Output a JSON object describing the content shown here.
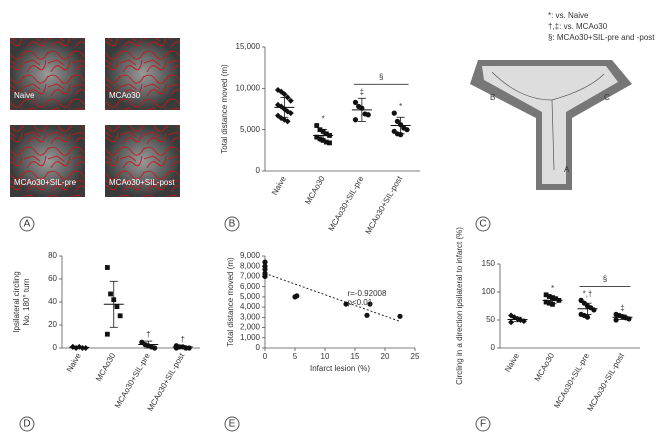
{
  "panel_a": {
    "labels": [
      "Naive",
      "MCAo30",
      "MCAo30+SIL-pre",
      "MCAo30+SIL-post"
    ]
  },
  "panel_c": {
    "legend": [
      "*: vs. Naive",
      "†,‡: vs. MCAo30",
      "§: MCAo30+SIL-pre and -post"
    ],
    "arms": [
      "B",
      "C",
      "A"
    ]
  },
  "panel_letters": [
    "A",
    "B",
    "C",
    "D",
    "E",
    "F"
  ],
  "chart_data": [
    {
      "type": "dot",
      "ylabel": [
        "Total distance moved (m)"
      ],
      "categories": [
        "Naive",
        "MCAo30",
        "MCAo30+SIL-pre",
        "MCAo30+SIL-post"
      ],
      "values": [
        [
          9800,
          9600,
          9300,
          8900,
          8500,
          8000,
          7800,
          7500,
          7200,
          7000,
          6700,
          6400,
          6200,
          6000
        ],
        [
          5500,
          5000,
          4800,
          4500,
          4300,
          4100,
          3900,
          3700,
          3500,
          3400
        ],
        [
          8300,
          7800,
          7600,
          6900,
          6800,
          6200
        ],
        [
          7000,
          6000,
          5600,
          5200,
          5000,
          4800,
          4500,
          4400
        ]
      ],
      "means": [
        7700,
        4300,
        7400,
        5500
      ],
      "errors": [
        1200,
        700,
        1400,
        1000
      ],
      "ylim": [
        0,
        15000
      ],
      "yticks": [
        0,
        {
          "value": 5000,
          "label": "5,000"
        },
        {
          "value": 10000,
          "label": "10,000"
        },
        {
          "value": 15000,
          "label": "15,000"
        }
      ],
      "annotations": [
        {
          "x": "MCAo30",
          "text": "*"
        },
        {
          "x": "MCAo30+SIL-pre",
          "text": "‡"
        },
        {
          "x": "MCAo30+SIL-post",
          "text": "*"
        }
      ],
      "brackets": [
        {
          "from": "MCAo30+SIL-pre",
          "to": "MCAo30+SIL-post",
          "text": "§"
        }
      ]
    },
    {
      "type": "dot",
      "ylabel": [
        "Ipsilateral circling",
        "No. 180° turn"
      ],
      "categories": [
        "Naive",
        "MCAo30",
        "MCAo30+SIL-pre",
        "MCAo30+SIL-post"
      ],
      "values": [
        [
          1,
          0,
          1,
          0,
          0,
          1
        ],
        [
          70,
          47,
          42,
          36,
          28,
          12
        ],
        [
          5,
          3,
          2,
          1,
          0
        ],
        [
          2,
          1,
          1,
          0,
          0,
          0
        ]
      ],
      "means": [
        0.5,
        38,
        3,
        1
      ],
      "errors": [
        0.5,
        20,
        3,
        1
      ],
      "ylim": [
        0,
        80
      ],
      "yticks": [
        0,
        20,
        40,
        60,
        80
      ],
      "annotations": [
        {
          "x": "MCAo30+SIL-pre",
          "text": "†"
        },
        {
          "x": "MCAo30+SIL-post",
          "text": "†"
        }
      ]
    },
    {
      "type": "scatter",
      "ylabel": [
        "Total distance moved (m)"
      ],
      "xlabel": "Infarct lesion (%)",
      "x": [
        0,
        0,
        0,
        0,
        0,
        0,
        5,
        5.3,
        13.5,
        17,
        17.5,
        22.5
      ],
      "y": [
        8400,
        8000,
        7700,
        7300,
        7200,
        7000,
        5000,
        5100,
        4300,
        3200,
        4300,
        3100
      ],
      "trendline": {
        "x": [
          0,
          22.5
        ],
        "y": [
          7300,
          2600
        ]
      },
      "notes": [
        "r=-0.92008",
        "p<0.01"
      ],
      "xlim": [
        0,
        25
      ],
      "xticks": [
        0,
        5,
        10,
        15,
        20,
        25
      ],
      "ylim": [
        0,
        9000
      ],
      "yticks": [
        0,
        {
          "value": 1000,
          "label": "1,000"
        },
        {
          "value": 2000,
          "label": "2,000"
        },
        {
          "value": 3000,
          "label": "3,000"
        },
        {
          "value": 4000,
          "label": "4,000"
        },
        {
          "value": 5000,
          "label": "5,000"
        },
        {
          "value": 6000,
          "label": "6,000"
        },
        {
          "value": 7000,
          "label": "7,000"
        },
        {
          "value": 8000,
          "label": "8,000"
        },
        {
          "value": 9000,
          "label": "9,000"
        }
      ]
    },
    {
      "type": "dot",
      "ylabel": [
        "Circling in a direction ipsilateral to infarct (%)"
      ],
      "categories": [
        "Naive",
        "MCAo30",
        "MCAo30+SIL-pre",
        "MCAo30+SIL-post"
      ],
      "values": [
        [
          58,
          55,
          52,
          50,
          48,
          46
        ],
        [
          95,
          92,
          90,
          88,
          85,
          82,
          80,
          78
        ],
        [
          85,
          80,
          75,
          72,
          68,
          60,
          58,
          55
        ],
        [
          60,
          58,
          56,
          54,
          52,
          50
        ]
      ],
      "means": [
        51,
        85,
        70,
        55
      ],
      "errors": [
        4,
        6,
        10,
        4
      ],
      "ylim": [
        0,
        150
      ],
      "yticks": [
        0,
        50,
        100,
        150
      ],
      "annotations": [
        {
          "x": "MCAo30",
          "text": "*"
        },
        {
          "x": "MCAo30+SIL-pre",
          "text": "*,†"
        },
        {
          "x": "MCAo30+SIL-post",
          "text": "‡"
        }
      ],
      "brackets": [
        {
          "from": "MCAo30+SIL-pre",
          "to": "MCAo30+SIL-post",
          "text": "§"
        }
      ]
    }
  ]
}
